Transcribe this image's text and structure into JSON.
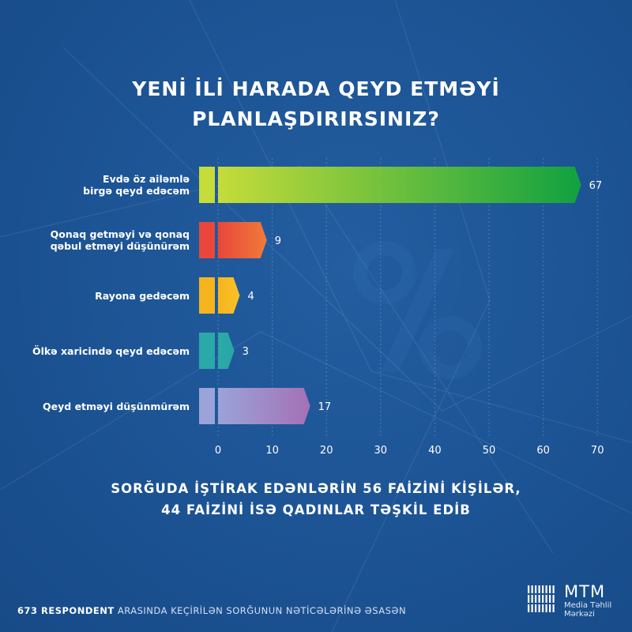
{
  "title_lines": [
    "YENİ İLİ HARADA QEYD ETMƏYİ",
    "PLANLAŞDIRIRSINIZ?"
  ],
  "chart_data": {
    "type": "bar",
    "orientation": "horizontal",
    "categories": [
      [
        "Evdə öz ailəmlə",
        "birgə qeyd edəcəm"
      ],
      [
        "Qonaq getməyi və qonaq",
        "qəbul etməyi düşünürəm"
      ],
      [
        "Rayona gedəcəm"
      ],
      [
        "Ölkə xaricində qeyd edəcəm"
      ],
      [
        "Qeyd etməyi düşünmürəm"
      ]
    ],
    "values": [
      67,
      9,
      4,
      3,
      17
    ],
    "data_labels": [
      "67",
      "9",
      "4",
      "3",
      "17"
    ],
    "xlim": [
      0,
      70
    ],
    "xticks": [
      "0",
      "10",
      "20",
      "30",
      "40",
      "50",
      "60",
      "70"
    ],
    "grid": true,
    "colors": [
      [
        "#c5dc3a",
        "#10a140"
      ],
      [
        "#e8473a",
        "#f07a3a"
      ],
      [
        "#f6b51c",
        "#f9c12a"
      ],
      [
        "#2ba8a8",
        "#2aa6a6"
      ],
      [
        "#9ba3d8",
        "#a471b6"
      ]
    ]
  },
  "footnote_lines": [
    "SORĞUDA İŞTİRAK EDƏNLƏRİN 56 FAİZİNİ KİŞİLƏR,",
    "44 FAİZİNİ İSƏ QADINLAR TƏŞKİL EDİB"
  ],
  "bottom": {
    "bold": "673 RESPONDENT",
    "rest": "ARASINDA KEÇİRİLƏN SORĞUNUN NƏTİCƏLƏRİNƏ ƏSASƏN"
  },
  "logo": {
    "abbr": "MTM",
    "line1": "Media Təhlil",
    "line2": "Mərkəzi"
  }
}
